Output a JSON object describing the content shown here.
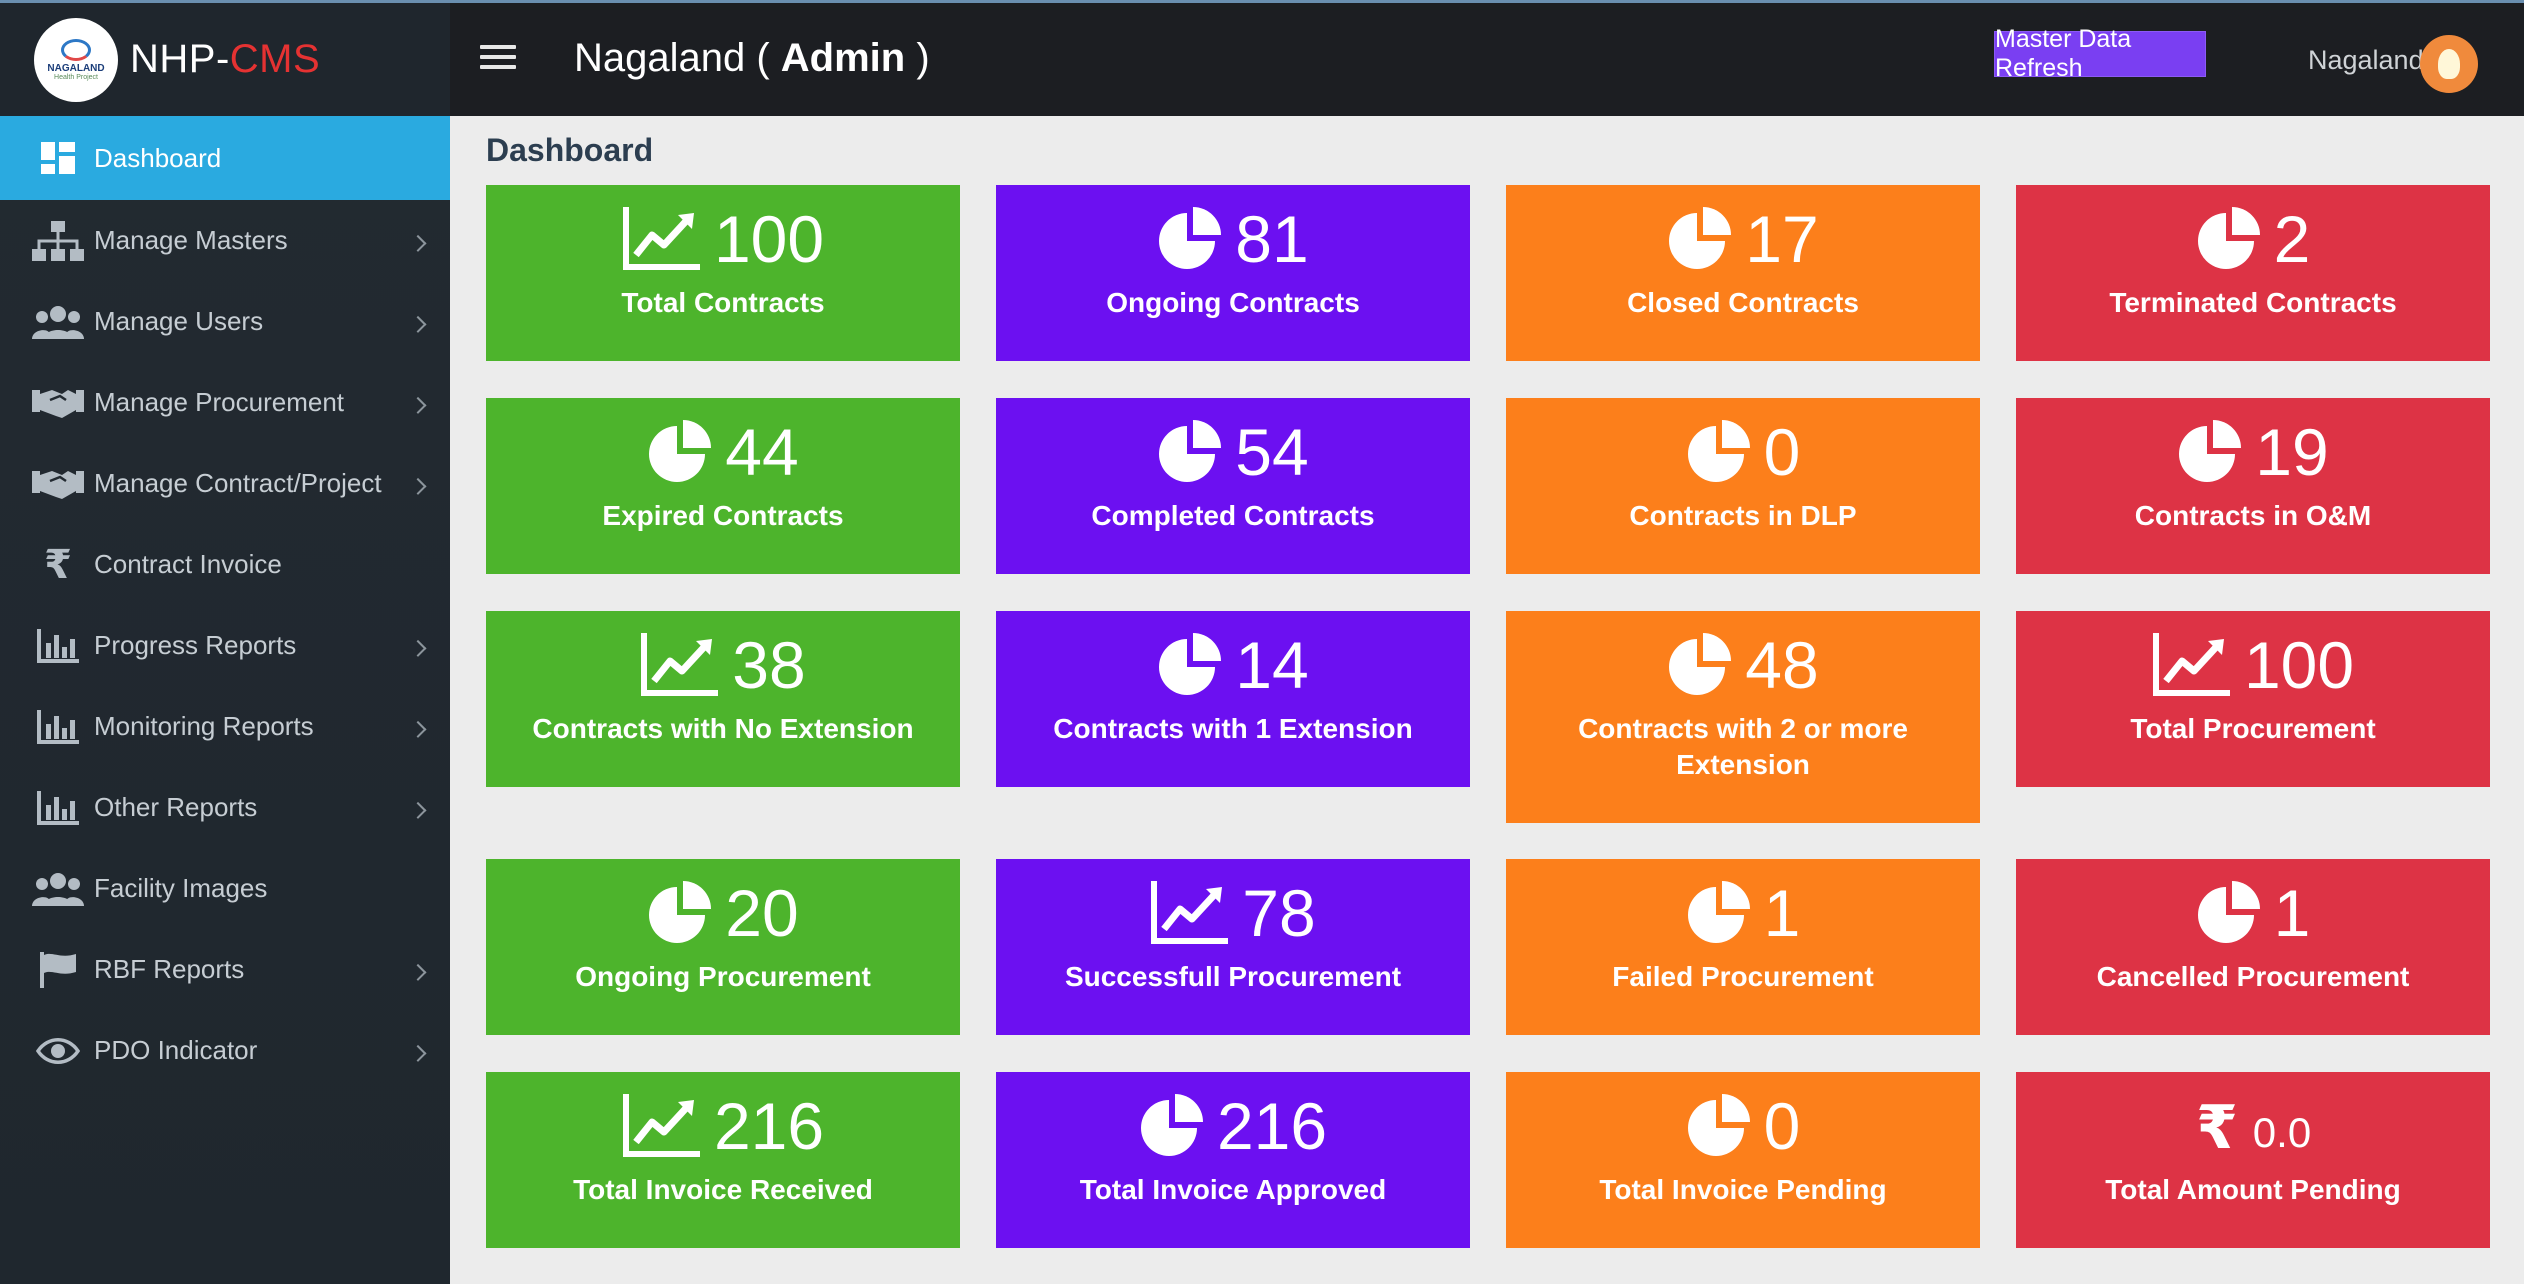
{
  "brand": {
    "logo_line1": "NAGALAND",
    "logo_line2": "Health Project",
    "name_prefix": "NHP-",
    "name_suffix": "CMS"
  },
  "header": {
    "title_prefix": "Nagaland ( ",
    "title_bold": "Admin",
    "title_suffix": " )",
    "refresh_label": "Master Data Refresh",
    "user_name": "Nagaland"
  },
  "sidebar": {
    "items": [
      {
        "label": "Dashboard",
        "icon": "dashboard-icon",
        "active": true
      },
      {
        "label": "Manage Masters",
        "icon": "sitemap-icon",
        "chevron": true
      },
      {
        "label": "Manage Users",
        "icon": "users-icon",
        "chevron": true
      },
      {
        "label": "Manage Procurement",
        "icon": "handshake-icon",
        "chevron": true
      },
      {
        "label": "Manage Contract/Project",
        "icon": "handshake-icon",
        "chevron": true
      },
      {
        "label": "Contract Invoice",
        "icon": "rupee-icon"
      },
      {
        "label": "Progress Reports",
        "icon": "bar-chart-icon",
        "chevron": true
      },
      {
        "label": "Monitoring Reports",
        "icon": "bar-chart-icon",
        "chevron": true
      },
      {
        "label": "Other Reports",
        "icon": "bar-chart-icon",
        "chevron": true
      },
      {
        "label": "Facility Images",
        "icon": "users-icon"
      },
      {
        "label": "RBF Reports",
        "icon": "flag-icon",
        "chevron": true
      },
      {
        "label": "PDO Indicator",
        "icon": "eye-icon",
        "chevron": true
      }
    ]
  },
  "main": {
    "page_title": "Dashboard",
    "cards": [
      {
        "value": "100",
        "label": "Total Contracts",
        "icon": "line-chart-icon",
        "color": "#4db42c"
      },
      {
        "value": "81",
        "label": "Ongoing Contracts",
        "icon": "pie-chart-icon",
        "color": "#6c10f1"
      },
      {
        "value": "17",
        "label": "Closed Contracts",
        "icon": "pie-chart-icon",
        "color": "#fc7f1b"
      },
      {
        "value": "2",
        "label": "Terminated Contracts",
        "icon": "pie-chart-icon",
        "color": "#dd3345"
      },
      {
        "value": "44",
        "label": "Expired Contracts",
        "icon": "pie-chart-icon",
        "color": "#4db42c"
      },
      {
        "value": "54",
        "label": "Completed Contracts",
        "icon": "pie-chart-icon",
        "color": "#6c10f1"
      },
      {
        "value": "0",
        "label": "Contracts in DLP",
        "icon": "pie-chart-icon",
        "color": "#fc7f1b"
      },
      {
        "value": "19",
        "label": "Contracts in O&M",
        "icon": "pie-chart-icon",
        "color": "#dd3345"
      },
      {
        "value": "38",
        "label": "Contracts with No Extension",
        "icon": "line-chart-icon",
        "color": "#4db42c"
      },
      {
        "value": "14",
        "label": "Contracts with 1 Extension",
        "icon": "pie-chart-icon",
        "color": "#6c10f1"
      },
      {
        "value": "48",
        "label": "Contracts with 2 or more Extension",
        "icon": "pie-chart-icon",
        "color": "#fc7f1b"
      },
      {
        "value": "100",
        "label": "Total Procurement",
        "icon": "line-chart-icon",
        "color": "#dd3345"
      },
      {
        "value": "20",
        "label": "Ongoing Procurement",
        "icon": "pie-chart-icon",
        "color": "#4db42c"
      },
      {
        "value": "78",
        "label": "Successfull Procurement",
        "icon": "line-chart-icon",
        "color": "#6c10f1"
      },
      {
        "value": "1",
        "label": "Failed Procurement",
        "icon": "pie-chart-icon",
        "color": "#fc7f1b"
      },
      {
        "value": "1",
        "label": "Cancelled Procurement",
        "icon": "pie-chart-icon",
        "color": "#dd3345"
      },
      {
        "value": "216",
        "label": "Total Invoice Received",
        "icon": "line-chart-icon",
        "color": "#4db42c"
      },
      {
        "value": "216",
        "label": "Total Invoice Approved",
        "icon": "pie-chart-icon",
        "color": "#6c10f1"
      },
      {
        "value": "0",
        "label": "Total Invoice Pending",
        "icon": "pie-chart-icon",
        "color": "#fc7f1b"
      },
      {
        "value": "0.0",
        "label": "Total Amount Pending",
        "icon": "rupee-icon",
        "color": "#dd3345"
      }
    ]
  }
}
